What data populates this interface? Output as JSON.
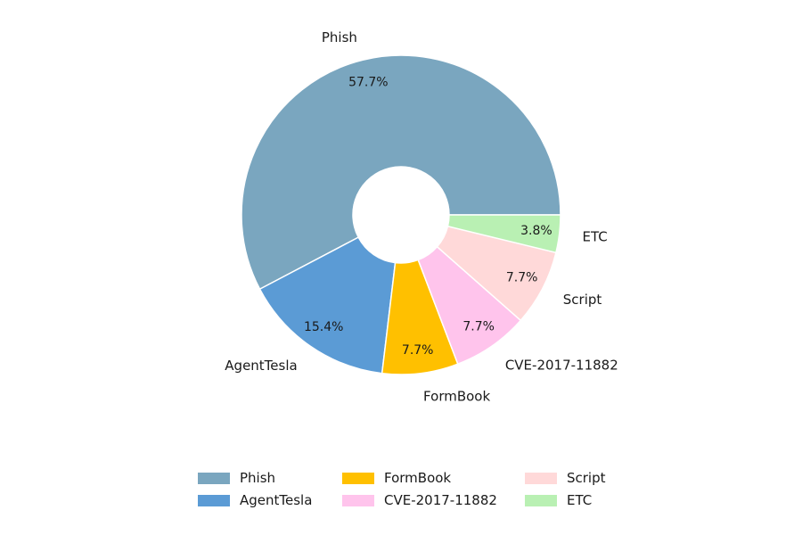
{
  "chart_data": {
    "type": "pie",
    "style": "donut",
    "categories": [
      "Phish",
      "AgentTesla",
      "FormBook",
      "CVE-2017-11882",
      "Script",
      "ETC"
    ],
    "values": [
      57.7,
      15.4,
      7.7,
      7.7,
      7.7,
      3.8
    ],
    "labels": [
      "57.7%",
      "15.4%",
      "7.7%",
      "7.7%",
      "7.7%",
      "3.8%"
    ],
    "colors": [
      "#7aa6bf",
      "#5b9bd5",
      "#ffc000",
      "#ffc4ec",
      "#ffd9d9",
      "#b9f0b3"
    ],
    "start_angle_deg": 0,
    "direction": "counterclockwise",
    "legend": {
      "placement": "bottom-center",
      "columns": 3
    }
  }
}
